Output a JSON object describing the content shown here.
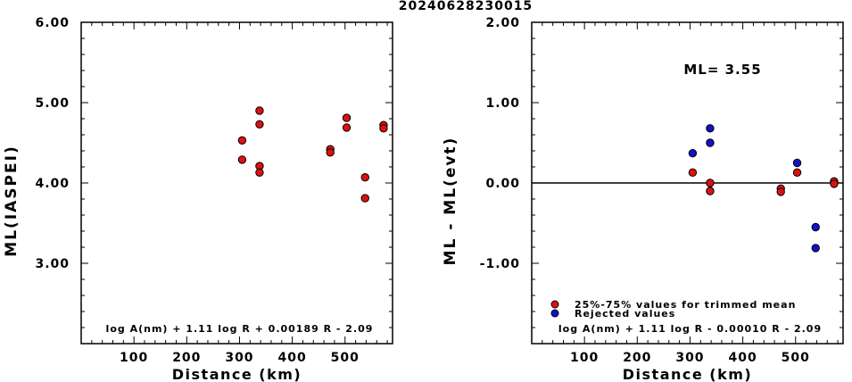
{
  "title": "20240628230015",
  "chart_data": [
    {
      "type": "scatter",
      "ylabel": "ML(IASPEI)",
      "xlabel": "Distance (km)",
      "xlim": [
        0,
        590
      ],
      "ylim": [
        2.0,
        6.0
      ],
      "xticks": [
        100,
        200,
        300,
        400,
        500
      ],
      "xtick_labels": [
        "100",
        "200",
        "300",
        "400",
        "500"
      ],
      "yticks": [
        3.0,
        4.0,
        5.0,
        6.0
      ],
      "ytick_labels": [
        "3.00",
        "4.00",
        "5.00",
        "6.00"
      ],
      "formula": "log A(nm) + 1.11 log R + 0.00189 R - 2.09",
      "series": [
        {
          "color": "#dd1111",
          "points": [
            [
              305,
              4.53
            ],
            [
              305,
              4.29
            ],
            [
              338,
              4.9
            ],
            [
              338,
              4.73
            ],
            [
              338,
              4.21
            ],
            [
              338,
              4.13
            ],
            [
              472,
              4.42
            ],
            [
              472,
              4.38
            ],
            [
              503,
              4.81
            ],
            [
              503,
              4.69
            ],
            [
              538,
              4.07
            ],
            [
              538,
              3.81
            ],
            [
              573,
              4.72
            ],
            [
              573,
              4.68
            ]
          ]
        }
      ]
    },
    {
      "type": "scatter",
      "ylabel": "ML - ML(evt)",
      "xlabel": "Distance (km)",
      "xlim": [
        0,
        590
      ],
      "ylim": [
        -2.0,
        2.0
      ],
      "xticks": [
        100,
        200,
        300,
        400,
        500
      ],
      "xtick_labels": [
        "100",
        "200",
        "300",
        "400",
        "500"
      ],
      "yticks": [
        -1.0,
        0.0,
        1.0,
        2.0
      ],
      "ytick_labels": [
        "-1.00",
        "0.00",
        "1.00",
        "2.00"
      ],
      "reference_line": 0.0,
      "annotation": "ML= 3.55",
      "formula": "log A(nm) + 1.11 log R - 0.00010 R - 2.09",
      "legend": [
        {
          "label": "25%-75% values for trimmed mean",
          "color": "#dd1111"
        },
        {
          "label": "Rejected values",
          "color": "#1111cc"
        }
      ],
      "series": [
        {
          "color": "#dd1111",
          "points": [
            [
              305,
              0.13
            ],
            [
              338,
              0.0
            ],
            [
              338,
              -0.1
            ],
            [
              472,
              -0.07
            ],
            [
              472,
              -0.11
            ],
            [
              503,
              0.13
            ],
            [
              573,
              0.02
            ],
            [
              573,
              -0.01
            ]
          ]
        },
        {
          "color": "#1111cc",
          "points": [
            [
              305,
              0.37
            ],
            [
              338,
              0.68
            ],
            [
              338,
              0.5
            ],
            [
              503,
              0.25
            ],
            [
              538,
              -0.55
            ],
            [
              538,
              -0.81
            ]
          ]
        }
      ]
    }
  ]
}
